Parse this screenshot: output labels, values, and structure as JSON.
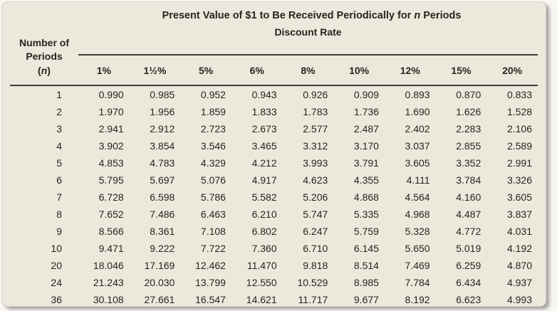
{
  "card": {
    "background": "#ece9dc",
    "rule_color": "#3e3c36",
    "text_color": "#26241f"
  },
  "table": {
    "title": {
      "prefix": "Present Value of $1 to Be Received Periodically for ",
      "italic": "n",
      "suffix": " Periods"
    },
    "discount_rate_label": "Discount Rate",
    "periods_header": {
      "line1": "Number of",
      "line2": "Periods",
      "open_paren": "(",
      "n_symbol": "n",
      "close_paren": ")"
    },
    "rates": [
      "1%",
      "1½%",
      "5%",
      "6%",
      "8%",
      "10%",
      "12%",
      "15%",
      "20%"
    ],
    "rows": [
      {
        "n": "1",
        "values": [
          "0.990",
          "0.985",
          "0.952",
          "0.943",
          "0.926",
          "0.909",
          "0.893",
          "0.870",
          "0.833"
        ]
      },
      {
        "n": "2",
        "values": [
          "1.970",
          "1.956",
          "1.859",
          "1.833",
          "1.783",
          "1.736",
          "1.690",
          "1.626",
          "1.528"
        ]
      },
      {
        "n": "3",
        "values": [
          "2.941",
          "2.912",
          "2.723",
          "2.673",
          "2.577",
          "2.487",
          "2.402",
          "2.283",
          "2.106"
        ]
      },
      {
        "n": "4",
        "values": [
          "3.902",
          "3.854",
          "3.546",
          "3.465",
          "3.312",
          "3.170",
          "3.037",
          "2.855",
          "2.589"
        ]
      },
      {
        "n": "5",
        "values": [
          "4.853",
          "4.783",
          "4.329",
          "4.212",
          "3.993",
          "3.791",
          "3.605",
          "3.352",
          "2.991"
        ]
      },
      {
        "n": "6",
        "values": [
          "5.795",
          "5.697",
          "5.076",
          "4.917",
          "4.623",
          "4.355",
          "4.111",
          "3.784",
          "3.326"
        ]
      },
      {
        "n": "7",
        "values": [
          "6.728",
          "6.598",
          "5.786",
          "5.582",
          "5.206",
          "4.868",
          "4.564",
          "4.160",
          "3.605"
        ]
      },
      {
        "n": "8",
        "values": [
          "7.652",
          "7.486",
          "6.463",
          "6.210",
          "5.747",
          "5.335",
          "4.968",
          "4.487",
          "3.837"
        ]
      },
      {
        "n": "9",
        "values": [
          "8.566",
          "8.361",
          "7.108",
          "6.802",
          "6.247",
          "5.759",
          "5.328",
          "4.772",
          "4.031"
        ]
      },
      {
        "n": "10",
        "values": [
          "9.471",
          "9.222",
          "7.722",
          "7.360",
          "6.710",
          "6.145",
          "5.650",
          "5.019",
          "4.192"
        ]
      },
      {
        "n": "20",
        "values": [
          "18.046",
          "17.169",
          "12.462",
          "11.470",
          "9.818",
          "8.514",
          "7.469",
          "6.259",
          "4.870"
        ]
      },
      {
        "n": "24",
        "values": [
          "21.243",
          "20.030",
          "13.799",
          "12.550",
          "10.529",
          "8.985",
          "7.784",
          "6.434",
          "4.937"
        ]
      },
      {
        "n": "36",
        "values": [
          "30.108",
          "27.661",
          "16.547",
          "14.621",
          "11.717",
          "9.677",
          "8.192",
          "6.623",
          "4.993"
        ]
      }
    ]
  }
}
